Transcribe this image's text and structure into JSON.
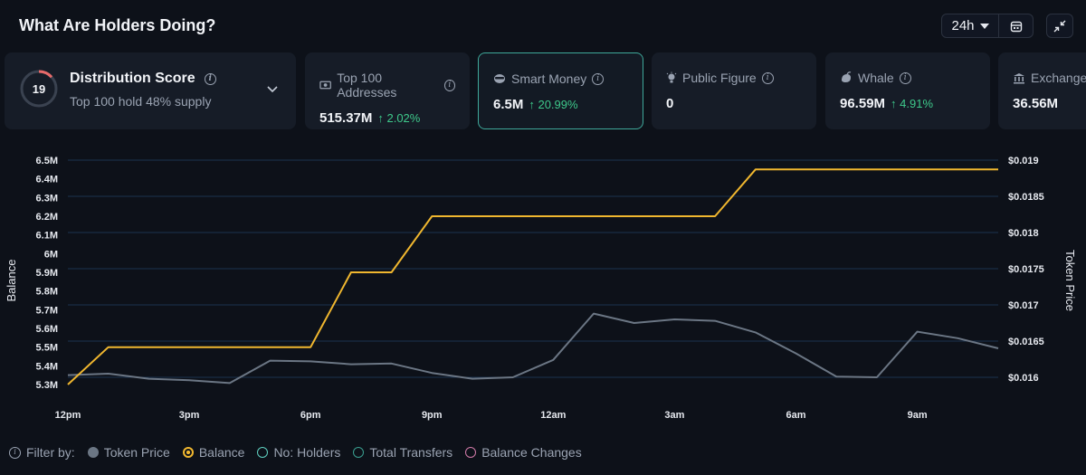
{
  "header": {
    "title": "What Are Holders Doing?",
    "time_range": "24h"
  },
  "distribution": {
    "score": "19",
    "title": "Distribution Score",
    "subtitle": "Top 100 hold 48% supply"
  },
  "cards": [
    {
      "label": "Top 100 Addresses",
      "value": "515.37M",
      "delta": "↑ 2.02%",
      "icon": "money-icon"
    },
    {
      "label": "Smart Money",
      "value": "6.5M",
      "delta": "↑ 20.99%",
      "icon": "smart-money-icon",
      "selected": true
    },
    {
      "label": "Public Figure",
      "value": "0",
      "delta": "",
      "icon": "lightbulb-icon"
    },
    {
      "label": "Whale",
      "value": "96.59M",
      "delta": "↑ 4.91%",
      "icon": "whale-icon"
    },
    {
      "label": "Exchange",
      "value": "36.56M",
      "delta": "",
      "icon": "bank-icon"
    }
  ],
  "legend": {
    "filter_label": "Filter by:",
    "items": [
      {
        "label": "Token Price",
        "color": "#6b7684",
        "filled": true
      },
      {
        "label": "Balance",
        "color": "#f0b72f",
        "filled": false
      },
      {
        "label": "No: Holders",
        "color": "#5fd0c0",
        "filled": false
      },
      {
        "label": "Total Transfers",
        "color": "#3a9e8f",
        "filled": false
      },
      {
        "label": "Balance Changes",
        "color": "#d17aa8",
        "filled": false
      }
    ]
  },
  "colors": {
    "balance": "#f0b72f",
    "price": "#6b7684",
    "accent": "#3fa89a",
    "positive": "#3ec98b"
  },
  "chart_data": {
    "type": "line",
    "x": [
      "12pm",
      "1pm",
      "2pm",
      "3pm",
      "4pm",
      "5pm",
      "6pm",
      "7pm",
      "8pm",
      "9pm",
      "10pm",
      "11pm",
      "12am",
      "1am",
      "2am",
      "3am",
      "4am",
      "5am",
      "6am",
      "7am",
      "8am",
      "9am",
      "10am",
      "11am"
    ],
    "xticks": [
      "12pm",
      "3pm",
      "6pm",
      "9pm",
      "12am",
      "3am",
      "6am",
      "9am"
    ],
    "ylabel": "Balance",
    "y2label": "Token Price",
    "yticks": [
      "5.3M",
      "5.4M",
      "5.5M",
      "5.6M",
      "5.7M",
      "5.8M",
      "5.9M",
      "6M",
      "6.1M",
      "6.2M",
      "6.3M",
      "6.4M",
      "6.5M"
    ],
    "y2ticks": [
      "$0.016",
      "$0.0165",
      "$0.017",
      "$0.0175",
      "$0.018",
      "$0.0185",
      "$0.019"
    ],
    "ylim": [
      5.3,
      6.5
    ],
    "y2lim": [
      0.016,
      0.019
    ],
    "series": [
      {
        "name": "Balance",
        "axis": "left",
        "step": true,
        "values": [
          5.3,
          5.5,
          5.5,
          5.5,
          5.5,
          5.5,
          5.5,
          5.9,
          5.9,
          6.2,
          6.2,
          6.2,
          6.2,
          6.2,
          6.2,
          6.2,
          6.2,
          6.45,
          6.45,
          6.45,
          6.45,
          6.45,
          6.45,
          6.45
        ]
      },
      {
        "name": "Token Price",
        "axis": "right",
        "values": [
          0.01603,
          0.01605,
          0.01598,
          0.01596,
          0.01592,
          0.01623,
          0.01622,
          0.01618,
          0.01619,
          0.01606,
          0.01598,
          0.016,
          0.01624,
          0.01688,
          0.01675,
          0.0168,
          0.01678,
          0.01662,
          0.01633,
          0.01601,
          0.016,
          0.01663,
          0.01654,
          0.0164
        ]
      }
    ]
  }
}
